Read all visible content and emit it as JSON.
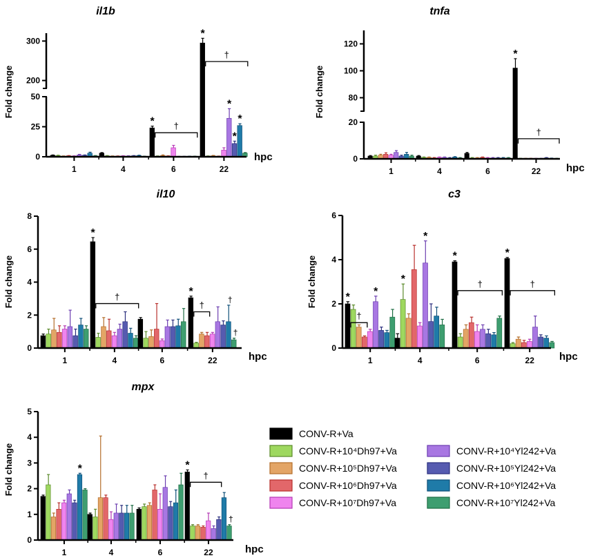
{
  "colors": {
    "series": [
      "#000000",
      "#9ed85f",
      "#e3a566",
      "#e2676a",
      "#ef84ee",
      "#a877e2",
      "#565bb0",
      "#1f7ba8",
      "#3e9e70"
    ],
    "border": [
      "#000000",
      "#5a8a2a",
      "#b46d2a",
      "#b8302c",
      "#b53ab5",
      "#6c3eb0",
      "#2b2f7e",
      "#0f4f78",
      "#1e6d44"
    ]
  },
  "legend": {
    "labels": [
      "CONV-R+Va",
      "CONV-R+10⁴Dh97+Va",
      "CONV-R+10⁵Dh97+Va",
      "CONV-R+10⁶Dh97+Va",
      "CONV-R+10⁷Dh97+Va",
      "CONV-R+10⁴Yl242+Va",
      "CONV-R+10⁵Yl242+Va",
      "CONV-R+10⁶Yl242+Va",
      "CONV-R+10⁷Yl242+Va"
    ]
  },
  "chart_data": [
    {
      "id": "il1b",
      "type": "bar",
      "title": "il1b",
      "ylabel": "Fold change",
      "xlabel": "hpc",
      "categories": [
        "1",
        "4",
        "6",
        "22"
      ],
      "y_broken": true,
      "y_segments": [
        {
          "range": [
            0,
            50
          ],
          "ticks": [
            0,
            25,
            50
          ]
        },
        {
          "range": [
            180,
            320
          ],
          "ticks": [
            200,
            300
          ]
        }
      ],
      "values": [
        [
          1.2,
          1.0,
          0.5,
          0.8,
          0.6,
          1.5,
          1.2,
          3.0,
          0.8
        ],
        [
          3.0,
          0.8,
          0.5,
          0.5,
          0.7,
          0.6,
          0.8,
          1.0,
          0.4
        ],
        [
          24,
          0.5,
          1.0,
          0.6,
          7.5,
          0.3,
          0.3,
          0.4,
          0.4
        ],
        [
          295,
          0.5,
          0.8,
          0.4,
          5.5,
          32,
          11,
          26,
          3
        ]
      ],
      "errors": [
        [
          0.3,
          0.3,
          0.2,
          0.2,
          0.2,
          0.5,
          0.3,
          0.8,
          0.2
        ],
        [
          0.5,
          0.2,
          0.2,
          0.2,
          0.2,
          0.2,
          0.2,
          0.3,
          0.1
        ],
        [
          1.5,
          0.2,
          0.5,
          0.2,
          2.0,
          0.1,
          0.1,
          0.1,
          0.1
        ],
        [
          12,
          0.2,
          0.3,
          0.2,
          2.0,
          8,
          2,
          1.5,
          0.5
        ]
      ],
      "stars": [
        {
          "group": 2,
          "bar": 0,
          "label": "*"
        },
        {
          "group": 3,
          "bar": 0,
          "label": "*"
        },
        {
          "group": 3,
          "bar": 5,
          "label": "*"
        },
        {
          "group": 3,
          "bar": 6,
          "label": "*"
        },
        {
          "group": 3,
          "bar": 7,
          "label": "*"
        }
      ],
      "brackets": [
        {
          "group": 2,
          "from": 1,
          "to": 8,
          "value": 20,
          "label": "†"
        },
        {
          "group": 3,
          "from": 1,
          "to": 8,
          "value": 248,
          "label": "†"
        }
      ]
    },
    {
      "id": "tnfa",
      "type": "bar",
      "title": "tnfa",
      "ylabel": "Fold change",
      "xlabel": "hpc",
      "categories": [
        "1",
        "4",
        "6",
        "22"
      ],
      "y_broken": true,
      "y_segments": [
        {
          "range": [
            0,
            20
          ],
          "ticks": [
            0,
            20
          ]
        },
        {
          "range": [
            70,
            130
          ],
          "ticks": [
            80,
            100,
            120
          ]
        }
      ],
      "values": [
        [
          1.5,
          1.5,
          2.0,
          2.5,
          2.0,
          3.5,
          1.5,
          2.5,
          1.5
        ],
        [
          1.5,
          0.8,
          0.8,
          0.5,
          0.8,
          0.8,
          0.5,
          1.0,
          0.5
        ],
        [
          3.0,
          0.5,
          0.5,
          0.8,
          0.5,
          0.5,
          0.5,
          0.5,
          0.5
        ],
        [
          102,
          0.2,
          0.2,
          0.2,
          0.2,
          0.2,
          0.5,
          0.3,
          0.2
        ]
      ],
      "errors": [
        [
          0.3,
          0.5,
          0.5,
          0.8,
          0.5,
          1.0,
          0.5,
          1.0,
          0.5
        ],
        [
          0.3,
          0.2,
          0.2,
          0.2,
          0.2,
          0.2,
          0.2,
          0.2,
          0.2
        ],
        [
          0.5,
          0.2,
          0.2,
          0.2,
          0.2,
          0.2,
          0.2,
          0.2,
          0.2
        ],
        [
          7,
          0.1,
          0.1,
          0.1,
          0.1,
          0.1,
          0.2,
          0.1,
          0.1
        ]
      ],
      "stars": [
        {
          "group": 3,
          "bar": 0,
          "label": "*"
        }
      ],
      "brackets": [
        {
          "group": 3,
          "from": 1,
          "to": 8,
          "value": 11,
          "label": "†"
        }
      ]
    },
    {
      "id": "il10",
      "type": "bar",
      "title": "il10",
      "ylabel": "Fold change",
      "xlabel": "hpc",
      "categories": [
        "1",
        "4",
        "6",
        "22"
      ],
      "ylim": [
        0,
        8
      ],
      "yticks": [
        0,
        2,
        4,
        6,
        8
      ],
      "values": [
        [
          0.75,
          0.85,
          1.1,
          0.95,
          1.15,
          1.3,
          0.75,
          1.4,
          1.15
        ],
        [
          6.45,
          0.65,
          1.3,
          1.05,
          0.75,
          1.15,
          1.6,
          0.9,
          0.6
        ],
        [
          1.75,
          0.6,
          0.7,
          1.15,
          0.45,
          1.3,
          1.3,
          1.35,
          1.6
        ],
        [
          3.05,
          0.3,
          0.85,
          0.75,
          0.85,
          1.6,
          1.4,
          1.6,
          0.5
        ]
      ],
      "errors": [
        [
          0.1,
          0.3,
          0.7,
          0.4,
          0.2,
          1.0,
          0.4,
          0.4,
          0.2
        ],
        [
          0.25,
          0.25,
          0.55,
          0.7,
          0.2,
          0.3,
          0.6,
          0.3,
          0.15
        ],
        [
          0.1,
          0.4,
          0.4,
          1.55,
          0.1,
          0.4,
          0.4,
          0.4,
          0.8
        ],
        [
          0.1,
          0.05,
          0.1,
          0.2,
          0.1,
          0.9,
          0.25,
          1.0,
          0.1
        ]
      ],
      "stars": [
        {
          "group": 1,
          "bar": 0,
          "label": "*"
        },
        {
          "group": 3,
          "bar": 0,
          "label": "*"
        }
      ],
      "daggers": [
        {
          "group": 3,
          "bar": 7,
          "label": "†"
        },
        {
          "group": 3,
          "bar": 8,
          "label": "†"
        }
      ],
      "brackets": [
        {
          "group": 1,
          "from": 1,
          "to": 8,
          "value": 2.7,
          "label": "†"
        },
        {
          "group": 3,
          "from": 1,
          "to": 3,
          "value": 2.2,
          "label": "†"
        }
      ]
    },
    {
      "id": "c3",
      "type": "bar",
      "title": "c3",
      "ylabel": "Fold change",
      "xlabel": "hpc",
      "categories": [
        "1",
        "4",
        "6",
        "22"
      ],
      "ylim": [
        0,
        6
      ],
      "yticks": [
        0,
        2,
        4,
        6
      ],
      "values": [
        [
          2.0,
          1.75,
          0.95,
          0.5,
          0.75,
          2.1,
          0.8,
          0.7,
          1.4
        ],
        [
          0.45,
          2.2,
          1.35,
          3.55,
          1.0,
          3.85,
          1.2,
          1.45,
          1.05
        ],
        [
          3.9,
          0.5,
          0.85,
          1.15,
          0.75,
          0.85,
          0.65,
          0.6,
          1.35
        ],
        [
          4.05,
          0.2,
          0.4,
          0.25,
          0.3,
          0.95,
          0.5,
          0.45,
          0.25
        ]
      ],
      "errors": [
        [
          0.1,
          0.2,
          0.1,
          0.05,
          0.1,
          0.25,
          0.15,
          0.1,
          0.35
        ],
        [
          0.2,
          0.7,
          0.2,
          1.1,
          0.15,
          1.0,
          0.8,
          0.4,
          0.25
        ],
        [
          0.05,
          0.15,
          0.2,
          0.25,
          0.3,
          0.2,
          0.2,
          0.1,
          0.1
        ],
        [
          0.05,
          0.05,
          0.1,
          0.1,
          0.1,
          0.5,
          0.1,
          0.1,
          0.05
        ]
      ],
      "stars": [
        {
          "group": 0,
          "bar": 0,
          "label": "*"
        },
        {
          "group": 0,
          "bar": 5,
          "label": "*"
        },
        {
          "group": 1,
          "bar": 1,
          "label": "*"
        },
        {
          "group": 1,
          "bar": 5,
          "label": "*"
        },
        {
          "group": 2,
          "bar": 0,
          "label": "*"
        },
        {
          "group": 3,
          "bar": 0,
          "label": "*"
        }
      ],
      "brackets": [
        {
          "group": 0,
          "from": 1,
          "to": 3,
          "value": 1.15,
          "label": "†"
        },
        {
          "group": 2,
          "from": 1,
          "to": 8,
          "value": 2.6,
          "label": "†"
        },
        {
          "group": 3,
          "from": 1,
          "to": 8,
          "value": 2.6,
          "label": "†"
        }
      ]
    },
    {
      "id": "mpx",
      "type": "bar",
      "title": "mpx",
      "ylabel": "Fold change",
      "xlabel": "hpc",
      "categories": [
        "1",
        "4",
        "6",
        "22"
      ],
      "ylim": [
        0,
        5
      ],
      "yticks": [
        0,
        1,
        2,
        3,
        4,
        5
      ],
      "values": [
        [
          1.7,
          2.15,
          0.9,
          1.2,
          1.45,
          1.8,
          1.45,
          2.55,
          1.95
        ],
        [
          1.0,
          0.9,
          1.65,
          1.65,
          0.8,
          1.05,
          1.05,
          1.05,
          1.05
        ],
        [
          1.2,
          1.3,
          1.35,
          1.95,
          1.2,
          2.05,
          1.3,
          1.45,
          2.15
        ],
        [
          2.65,
          0.55,
          0.55,
          0.5,
          0.75,
          0.45,
          0.8,
          1.65,
          0.55
        ]
      ],
      "errors": [
        [
          0.05,
          0.4,
          0.15,
          0.25,
          0.1,
          0.15,
          0.1,
          0.05,
          0.05
        ],
        [
          0.05,
          0.3,
          2.4,
          0.1,
          0.3,
          0.35,
          0.3,
          0.3,
          0.3
        ],
        [
          0.05,
          0.1,
          0.1,
          0.2,
          0.6,
          0.45,
          0.2,
          0.5,
          0.45
        ],
        [
          0.08,
          0.05,
          0.05,
          0.05,
          0.3,
          0.1,
          0.1,
          0.2,
          0.05
        ]
      ],
      "stars": [
        {
          "group": 0,
          "bar": 7,
          "label": "*"
        },
        {
          "group": 3,
          "bar": 0,
          "label": "*"
        }
      ],
      "daggers": [
        {
          "group": 3,
          "bar": 8,
          "label": "†"
        }
      ],
      "brackets": [
        {
          "group": 3,
          "from": 1,
          "to": 6,
          "value": 2.25,
          "label": "†"
        }
      ]
    }
  ]
}
